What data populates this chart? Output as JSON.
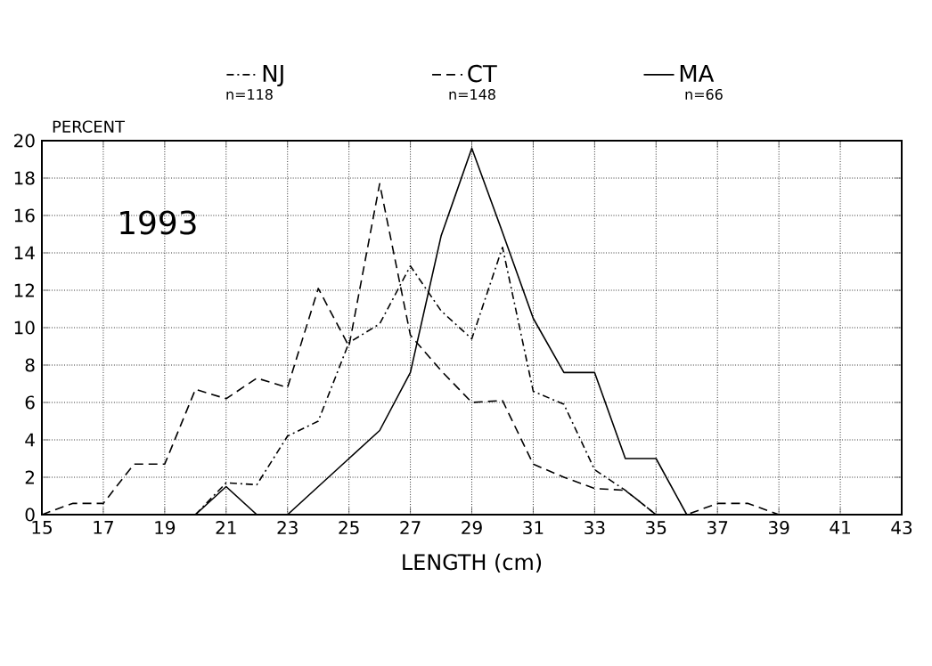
{
  "chart_data": {
    "type": "line",
    "xlabel": "LENGTH (cm)",
    "ylabel": "PERCENT",
    "annotations": [
      "1993",
      "n=118",
      "n=148",
      "n=66"
    ],
    "series": [
      {
        "name": "NJ",
        "color": "#000000",
        "line_style": "dashdot",
        "x": [
          20,
          21,
          22,
          23,
          24,
          25,
          26,
          27,
          28,
          29,
          30,
          31,
          32,
          33,
          34,
          35
        ],
        "values": [
          0,
          1.7,
          1.6,
          4.2,
          5.0,
          9.2,
          10.2,
          13.3,
          10.9,
          9.4,
          14.3,
          6.6,
          5.9,
          2.4,
          1.3,
          0
        ]
      },
      {
        "name": "CT",
        "color": "#000000",
        "line_style": "dashed",
        "x": [
          15,
          16,
          17,
          18,
          19,
          20,
          21,
          22,
          23,
          24,
          25,
          26,
          27,
          28,
          29,
          30,
          31,
          32,
          33,
          34,
          35,
          36,
          37,
          38,
          39
        ],
        "values": [
          0,
          0.6,
          0.6,
          2.7,
          2.7,
          6.7,
          6.2,
          7.3,
          6.8,
          12.1,
          9.0,
          17.7,
          9.6,
          7.7,
          6.0,
          6.1,
          2.7,
          2.0,
          1.4,
          1.3,
          0,
          0,
          0.6,
          0.6,
          0
        ]
      },
      {
        "name": "MA",
        "color": "#000000",
        "line_style": "solid",
        "x": [
          20,
          21,
          22,
          23,
          24,
          25,
          26,
          27,
          28,
          29,
          30,
          31,
          32,
          33,
          34,
          35,
          36,
          37,
          38,
          39,
          40,
          41,
          42,
          43
        ],
        "values": [
          0,
          1.5,
          0,
          0,
          1.5,
          3.0,
          4.5,
          7.6,
          14.9,
          19.6,
          15.1,
          10.5,
          7.6,
          7.6,
          3.0,
          3.0,
          0,
          0,
          0,
          0,
          0,
          0,
          0,
          0
        ]
      }
    ],
    "xlim": [
      15,
      43
    ],
    "xticks": [
      15,
      17,
      19,
      21,
      23,
      25,
      27,
      29,
      31,
      33,
      35,
      37,
      39,
      41,
      43
    ],
    "ylim": [
      0,
      20
    ],
    "yticks": [
      0,
      2,
      4,
      6,
      8,
      10,
      12,
      14,
      16,
      18,
      20
    ],
    "grid": true,
    "legend": "top",
    "marker": "none"
  }
}
